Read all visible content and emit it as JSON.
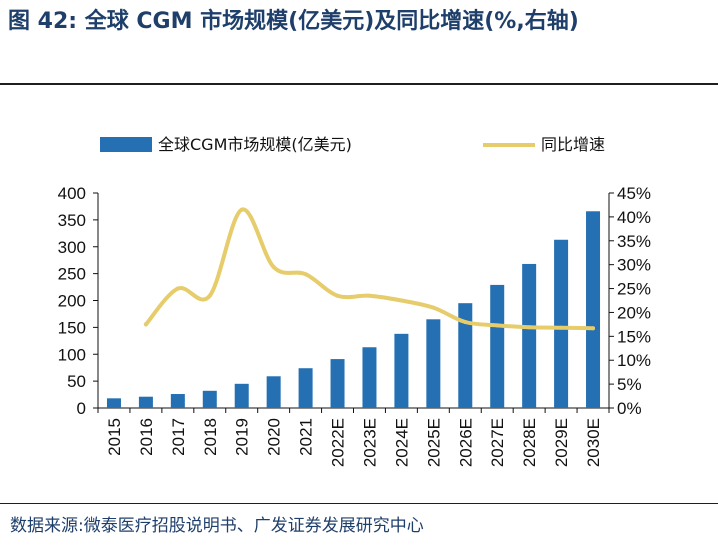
{
  "figure": {
    "title": "图 42: 全球 CGM 市场规模(亿美元)及同比增速(%,右轴)",
    "source": "数据来源:微泰医疗招股说明书、广发证券发展研究中心"
  },
  "colors": {
    "bar": "#2470b2",
    "line": "#e6cc6a",
    "title": "#1f3f6b",
    "axis": "#111111"
  },
  "chart_data": {
    "type": "bar",
    "categories": [
      "2015",
      "2016",
      "2017",
      "2018",
      "2019",
      "2020",
      "2021",
      "2022E",
      "2023E",
      "2024E",
      "2025E",
      "2026E",
      "2027E",
      "2028E",
      "2029E",
      "2030E"
    ],
    "series": [
      {
        "name": "全球CGM市场规模(亿美元)",
        "type": "bar",
        "axis": "left",
        "values": [
          18,
          21,
          26,
          32,
          45,
          59,
          74,
          91,
          113,
          138,
          165,
          195,
          229,
          268,
          313,
          366
        ]
      },
      {
        "name": "同比增速",
        "type": "line",
        "axis": "right",
        "unit": "%",
        "values": [
          null,
          17.5,
          25,
          23.5,
          41.5,
          29.5,
          28,
          23.5,
          23.5,
          22.5,
          21,
          18,
          17.3,
          16.9,
          16.8,
          16.7
        ]
      }
    ],
    "ylim_left": [
      0,
      400
    ],
    "yticks_left": [
      0,
      50,
      100,
      150,
      200,
      250,
      300,
      350,
      400
    ],
    "ylim_right": [
      0,
      45
    ],
    "yticks_right": [
      "0%",
      "5%",
      "10%",
      "15%",
      "20%",
      "25%",
      "30%",
      "35%",
      "40%",
      "45%"
    ],
    "grid": false,
    "legend_position": "top"
  }
}
